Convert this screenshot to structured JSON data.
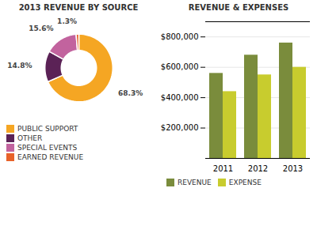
{
  "chart_data": [
    {
      "type": "pie",
      "title": "2013 REVENUE BY SOURCE",
      "categories": [
        "PUBLIC SUPPORT",
        "OTHER",
        "SPECIAL EVENTS",
        "EARNED REVENUE"
      ],
      "values": [
        68.3,
        14.8,
        15.6,
        1.3
      ],
      "value_labels": [
        "68.3%",
        "14.8%",
        "15.6%",
        "1.3%"
      ],
      "colors": [
        "#f5a623",
        "#5b2256",
        "#c2639e",
        "#e8622a"
      ],
      "data_labels": true,
      "legend": "bottom"
    },
    {
      "type": "bar",
      "title": "REVENUE & EXPENSES",
      "categories": [
        "2011",
        "2012",
        "2013"
      ],
      "series": [
        {
          "name": "REVENUE",
          "color": "#7a8c3c",
          "values": [
            560000,
            680000,
            760000
          ]
        },
        {
          "name": "EXPENSE",
          "color": "#c8cc2e",
          "values": [
            440000,
            550000,
            600000
          ]
        }
      ],
      "ylim": [
        0,
        900000
      ],
      "yticks": [
        {
          "value": 200000,
          "label": "$200,000"
        },
        {
          "value": 400000,
          "label": "$400,000"
        },
        {
          "value": 600000,
          "label": "$600,000"
        },
        {
          "value": 800000,
          "label": "$800,000"
        }
      ],
      "grid": true,
      "legend": "bottom"
    }
  ]
}
